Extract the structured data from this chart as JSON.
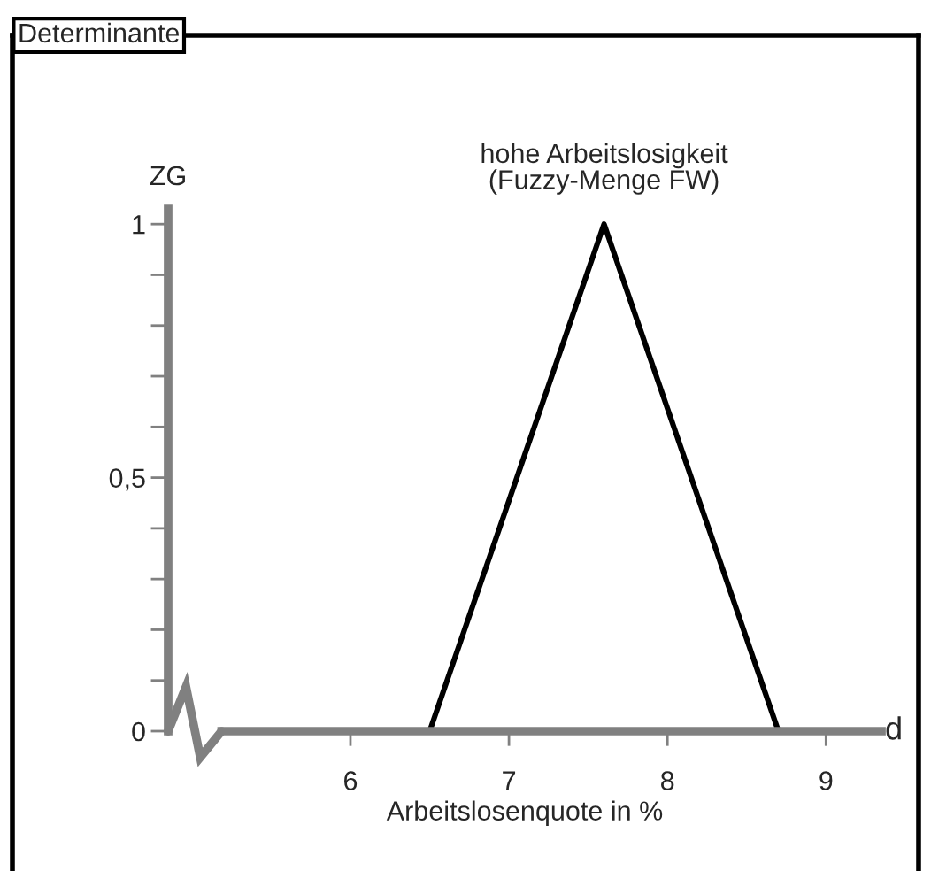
{
  "chart_data": {
    "type": "line",
    "title": "Determinante",
    "xlabel": "Arbeitslosenquote in %",
    "ylabel": "ZG",
    "x": [
      6.5,
      7.6,
      8.7
    ],
    "series": [
      {
        "name": "hohe Arbeitslosigkeit\n(Fuzzy-Menge FW)",
        "color": "#000000",
        "values": [
          0,
          1,
          0
        ]
      }
    ],
    "xlim": [
      4.85,
      9.35
    ],
    "xticks": [
      6,
      7,
      8,
      9
    ],
    "ylim": [
      0,
      1.03
    ],
    "yticks": [
      0,
      {
        "value": 0.1,
        "label": null
      },
      {
        "value": 0.2,
        "label": null
      },
      {
        "value": 0.3,
        "label": null
      },
      {
        "value": 0.4,
        "label": null
      },
      {
        "value": 0.5,
        "label": "0,5"
      },
      {
        "value": 0.6,
        "label": null
      },
      {
        "value": 0.7,
        "label": null
      },
      {
        "value": 0.8,
        "label": null
      },
      {
        "value": 0.9,
        "label": null
      },
      1
    ],
    "annotations": [
      "d"
    ],
    "grid": false,
    "legend": false,
    "marker": "none",
    "line_style": "solid"
  }
}
